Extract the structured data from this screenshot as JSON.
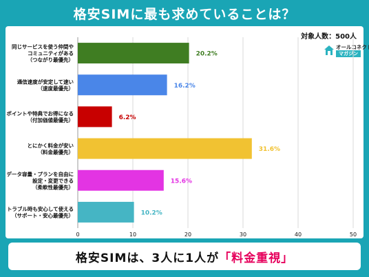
{
  "title": "格安SIMに最も求めていることは？",
  "respondents": "対象人数：500人",
  "logo": {
    "top": "オールコネクト",
    "bottom": "マガジン"
  },
  "footer": {
    "prefix": "格安SIMは、3人に1人が",
    "highlight": "「料金重視」"
  },
  "chart_data": {
    "type": "bar",
    "orientation": "horizontal",
    "title": "格安SIMに最も求めていることは？",
    "xlim": [
      0,
      50
    ],
    "xticks": [
      0,
      10,
      20,
      30,
      40,
      50
    ],
    "grid": true,
    "value_suffix": "%",
    "categories": [
      {
        "lines": [
          "同じサービスを使う仲間や",
          "コミュニティがある",
          "（つながり最優先）"
        ],
        "value": 20.2,
        "color": "#3f7d22"
      },
      {
        "lines": [
          "通信速度が安定して速い",
          "（速度最優先）"
        ],
        "value": 16.2,
        "color": "#4a86e8"
      },
      {
        "lines": [
          "ポイントや特典でお得になる",
          "（付加価値最優先）"
        ],
        "value": 6.2,
        "color": "#c80000"
      },
      {
        "lines": [
          "とにかく料金が安い",
          "（料金最優先）"
        ],
        "value": 31.6,
        "color": "#f1c232"
      },
      {
        "lines": [
          "データ容量・プランを自由に",
          "設定・変更できる",
          "（柔軟性最優先）"
        ],
        "value": 15.6,
        "color": "#e334e3"
      },
      {
        "lines": [
          "トラブル時も安心して使える",
          "（サポート・安心最優先）"
        ],
        "value": 10.2,
        "color": "#45b5c4"
      }
    ]
  }
}
